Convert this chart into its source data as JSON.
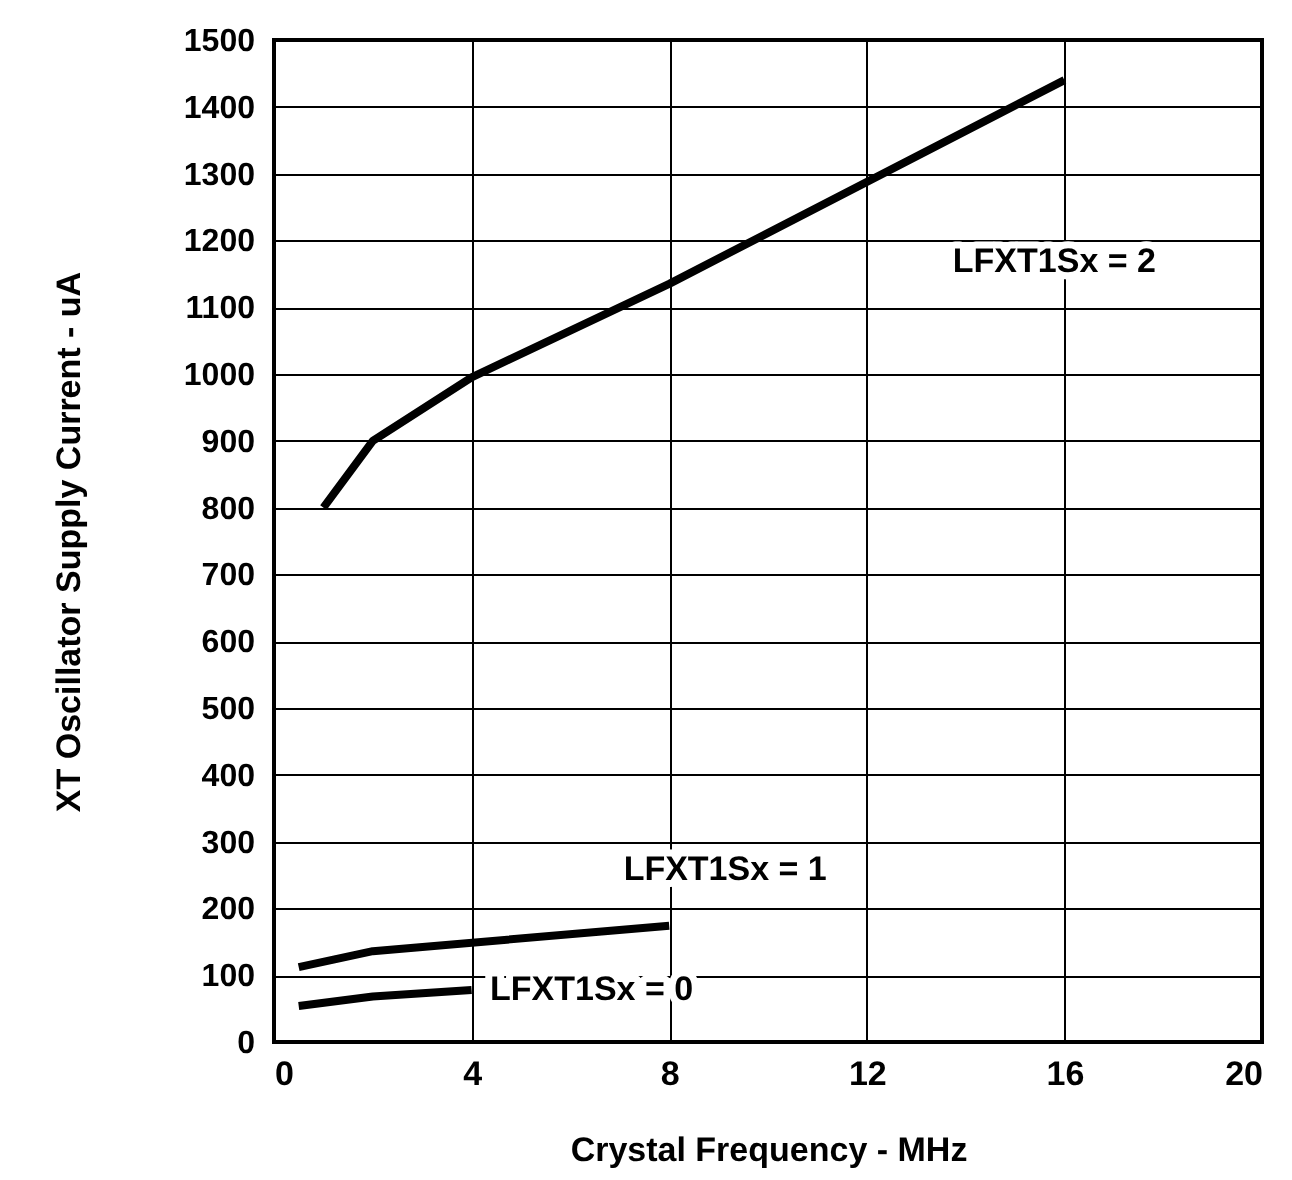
{
  "chart_data": {
    "type": "line",
    "xlabel": "Crystal Frequency - MHz",
    "ylabel": "XT Oscillator Supply Current  - uA",
    "xlim": [
      0,
      20
    ],
    "xticks": [
      0,
      4,
      8,
      12,
      16,
      20
    ],
    "ylim": [
      0,
      1500
    ],
    "yticks": [
      0,
      100,
      200,
      300,
      400,
      500,
      600,
      700,
      800,
      900,
      1000,
      1100,
      1200,
      1300,
      1400,
      1500
    ],
    "grid": true,
    "legend": false,
    "marker": "none",
    "line_style": "solid",
    "series": [
      {
        "name": "LFXT1Sx = 2",
        "color": "#000000",
        "x": [
          1,
          2,
          4,
          8,
          16
        ],
        "values": [
          800,
          900,
          995,
          1135,
          1440
        ]
      },
      {
        "name": "LFXT1Sx = 1",
        "color": "#000000",
        "x": [
          0.5,
          2,
          8
        ],
        "values": [
          112,
          136,
          174
        ]
      },
      {
        "name": "LFXT1Sx = 0",
        "color": "#000000",
        "x": [
          0.5,
          2,
          4
        ],
        "values": [
          54,
          68,
          78
        ]
      }
    ]
  }
}
